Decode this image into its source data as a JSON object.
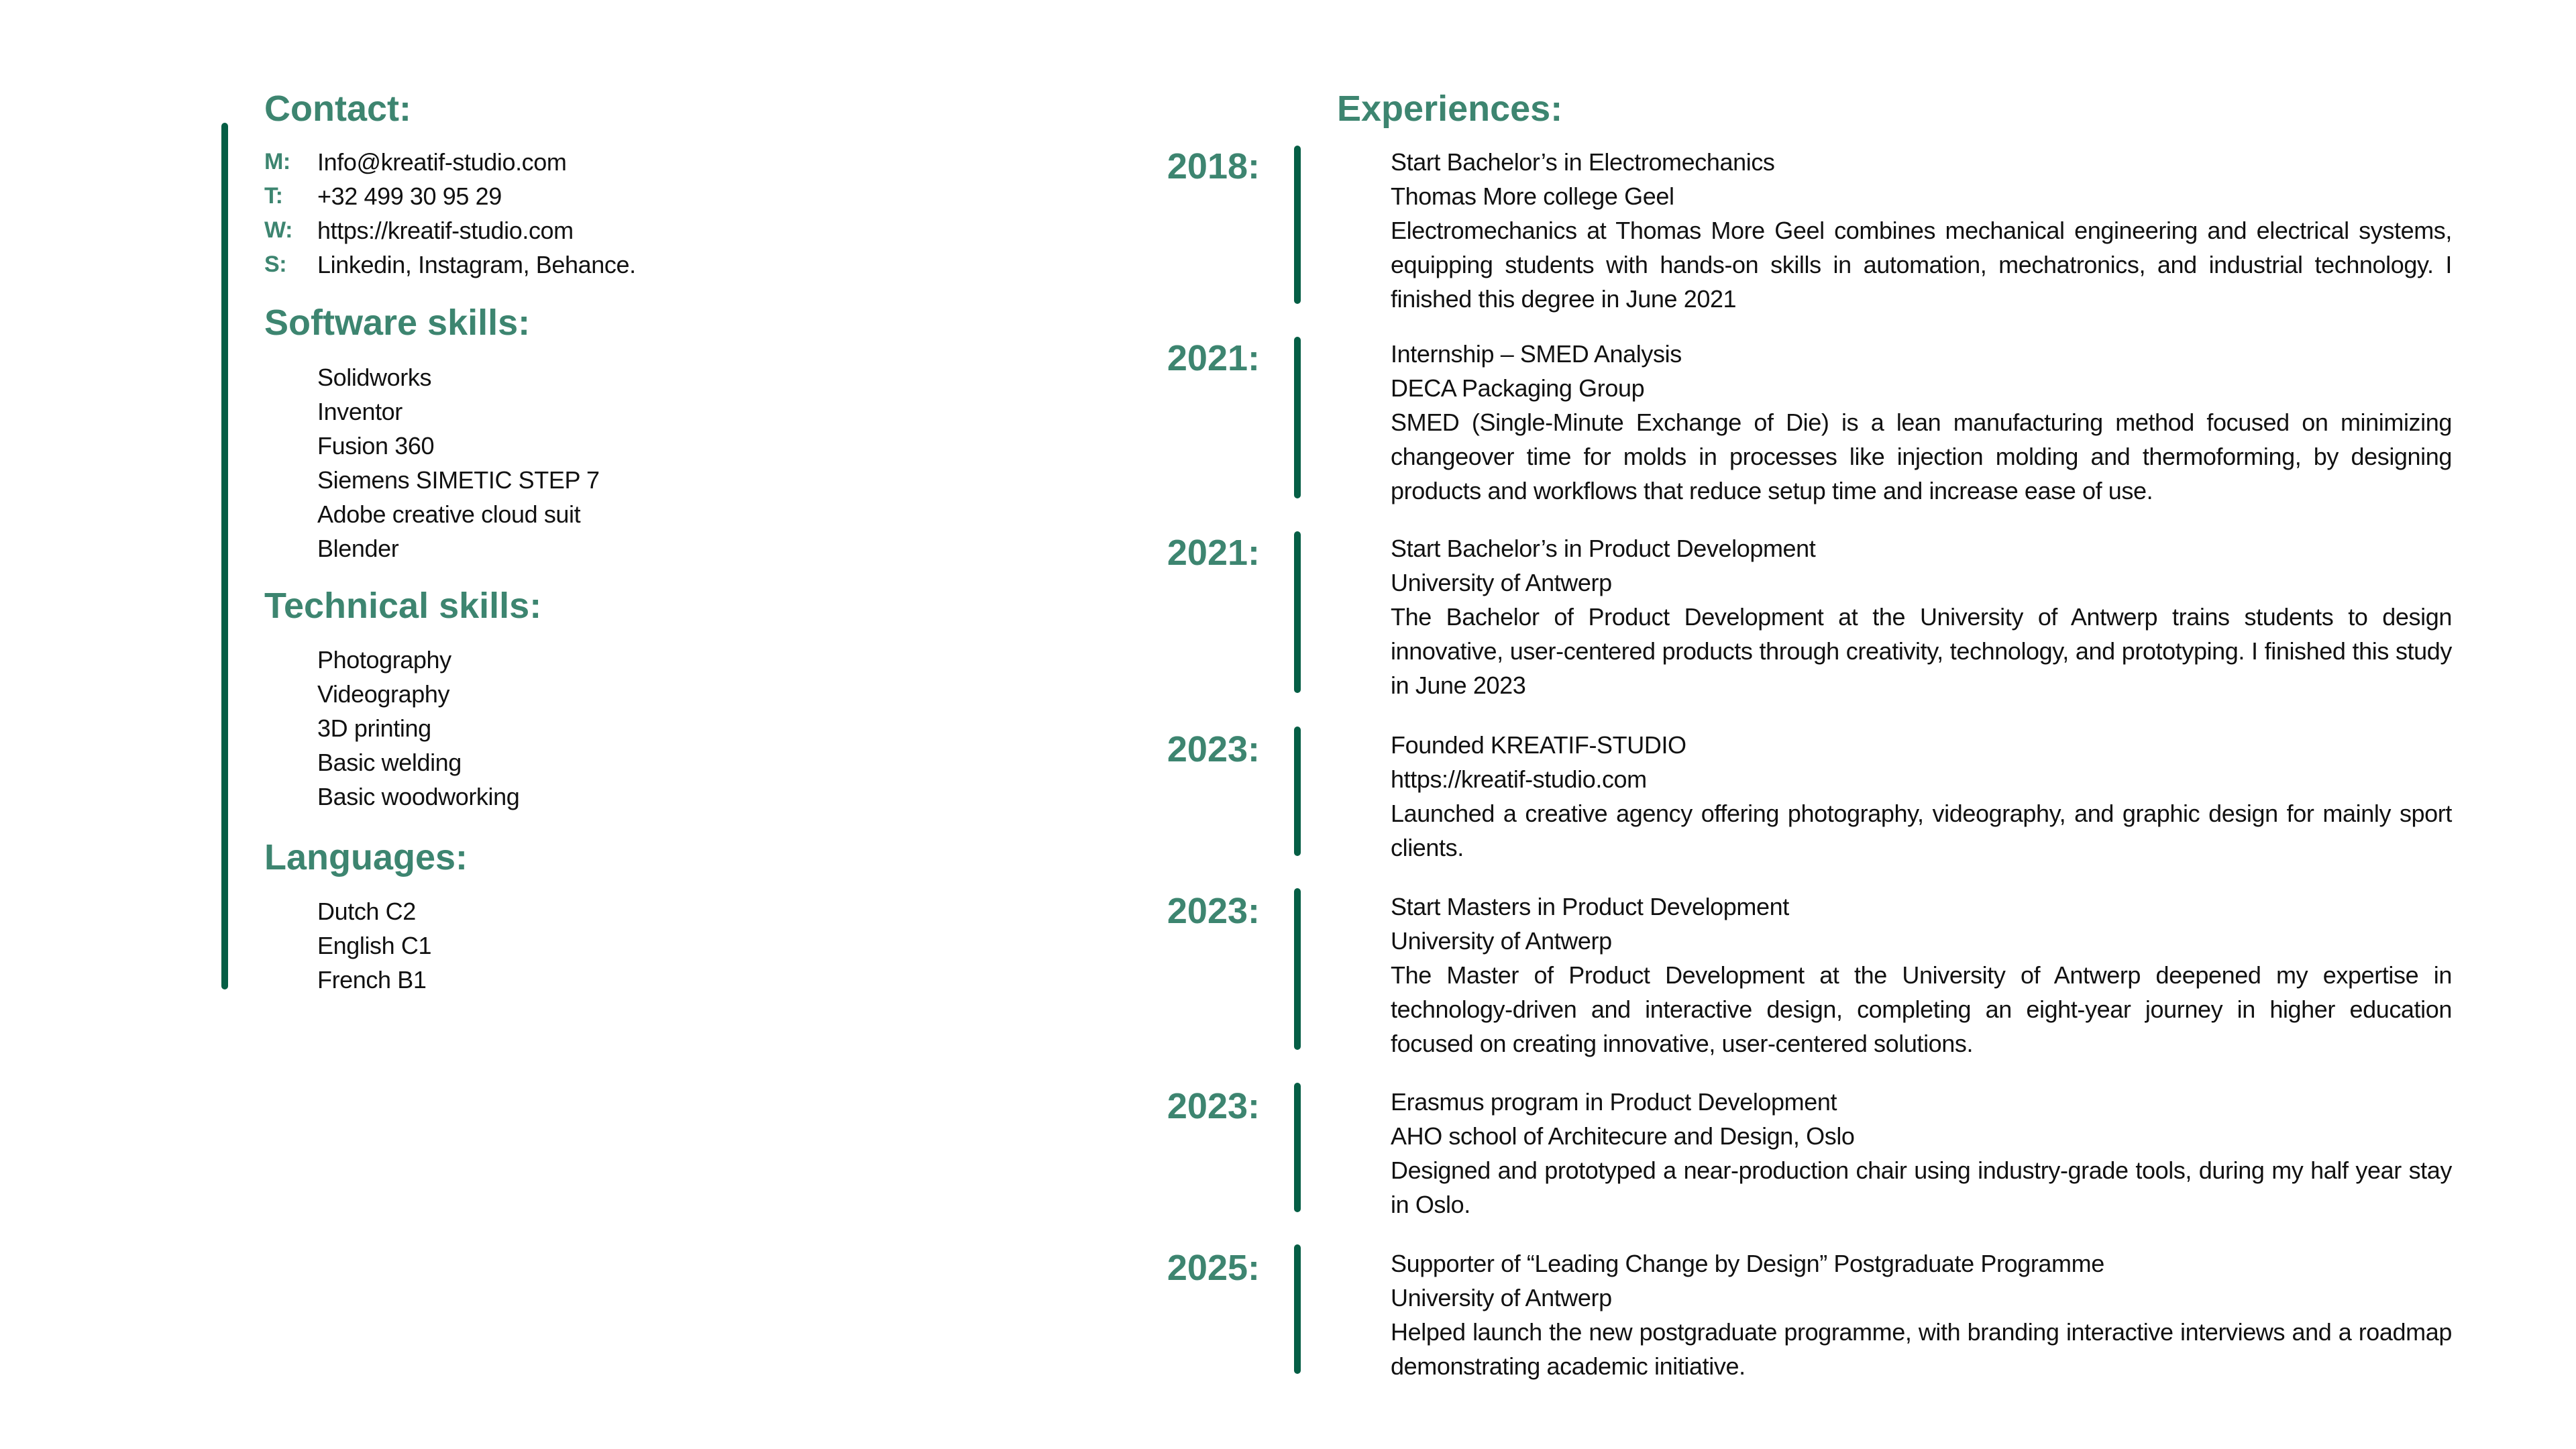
{
  "contact": {
    "title": "Contact:",
    "items": [
      {
        "label": "M:",
        "value": "Info@kreatif-studio.com"
      },
      {
        "label": "T:",
        "value": "+32 499 30 95 29"
      },
      {
        "label": "W:",
        "value": "https://kreatif-studio.com"
      },
      {
        "label": "S:",
        "value": "Linkedin, Instagram, Behance."
      }
    ]
  },
  "software": {
    "title": "Software skills:",
    "items": [
      "Solidworks",
      "Inventor",
      "Fusion 360",
      "Siemens SIMETIC STEP 7",
      "Adobe creative cloud suit",
      "Blender"
    ]
  },
  "technical": {
    "title": "Technical skills:",
    "items": [
      "Photography",
      "Videography",
      "3D printing",
      "Basic welding",
      "Basic woodworking"
    ]
  },
  "languages": {
    "title": "Languages:",
    "items": [
      "Dutch C2",
      "English C1",
      "French B1"
    ]
  },
  "experiences": {
    "title": "Experiences:",
    "items": [
      {
        "year": "2018:",
        "title": "Start Bachelor’s in Electromechanics",
        "org": "Thomas More college Geel",
        "desc": "Electromechanics at Thomas More Geel combines mechanical engineering and electrical systems, equipping students with hands-on skills in automation, mechatronics, and industrial technology. I finished this degree in June 2021"
      },
      {
        "year": "2021:",
        "title": "Internship – SMED Analysis",
        "org": "DECA Packaging Group",
        "desc": "SMED (Single-Minute Exchange of Die) is a lean manufacturing method focused on minimizing changeover time for molds in processes like injection molding and thermoforming, by designing products and workflows that reduce setup time and increase ease of use."
      },
      {
        "year": "2021:",
        "title": "Start Bachelor’s in Product Development",
        "org": "University of Antwerp",
        "desc": "The Bachelor of Product Development at the University of Antwerp trains students to design innovative, user-centered products through creativity, technology, and prototyping. I finished this study in June 2023"
      },
      {
        "year": "2023:",
        "title": "Founded KREATIF-STUDIO",
        "org": "https://kreatif-studio.com",
        "desc": "Launched a creative agency offering photography, videography, and graphic design for mainly sport clients."
      },
      {
        "year": "2023:",
        "title": "Start Masters in Product Development",
        "org": "University of Antwerp",
        "desc": "The Master of Product Development at the University of Antwerp deepened my expertise in technology-driven and interactive design, completing an eight-year journey in higher education focused on creating innovative, user-centered solutions."
      },
      {
        "year": "2023:",
        "title": "Erasmus program in Product Development",
        "org": "AHO school of Architecure and Design, Oslo",
        "desc": "Designed and prototyped a near-production chair using industry-grade tools, during my half year stay in Oslo."
      },
      {
        "year": "2025:",
        "title": "Supporter of “Leading Change by Design” Postgraduate Programme",
        "org": "University of Antwerp",
        "desc": "Helped launch the new postgraduate programme, with branding interactive interviews and a roadmap demonstrating academic initiative."
      }
    ]
  },
  "colors": {
    "heading": "#3d8570",
    "bar": "#055e45",
    "text": "#111111"
  }
}
